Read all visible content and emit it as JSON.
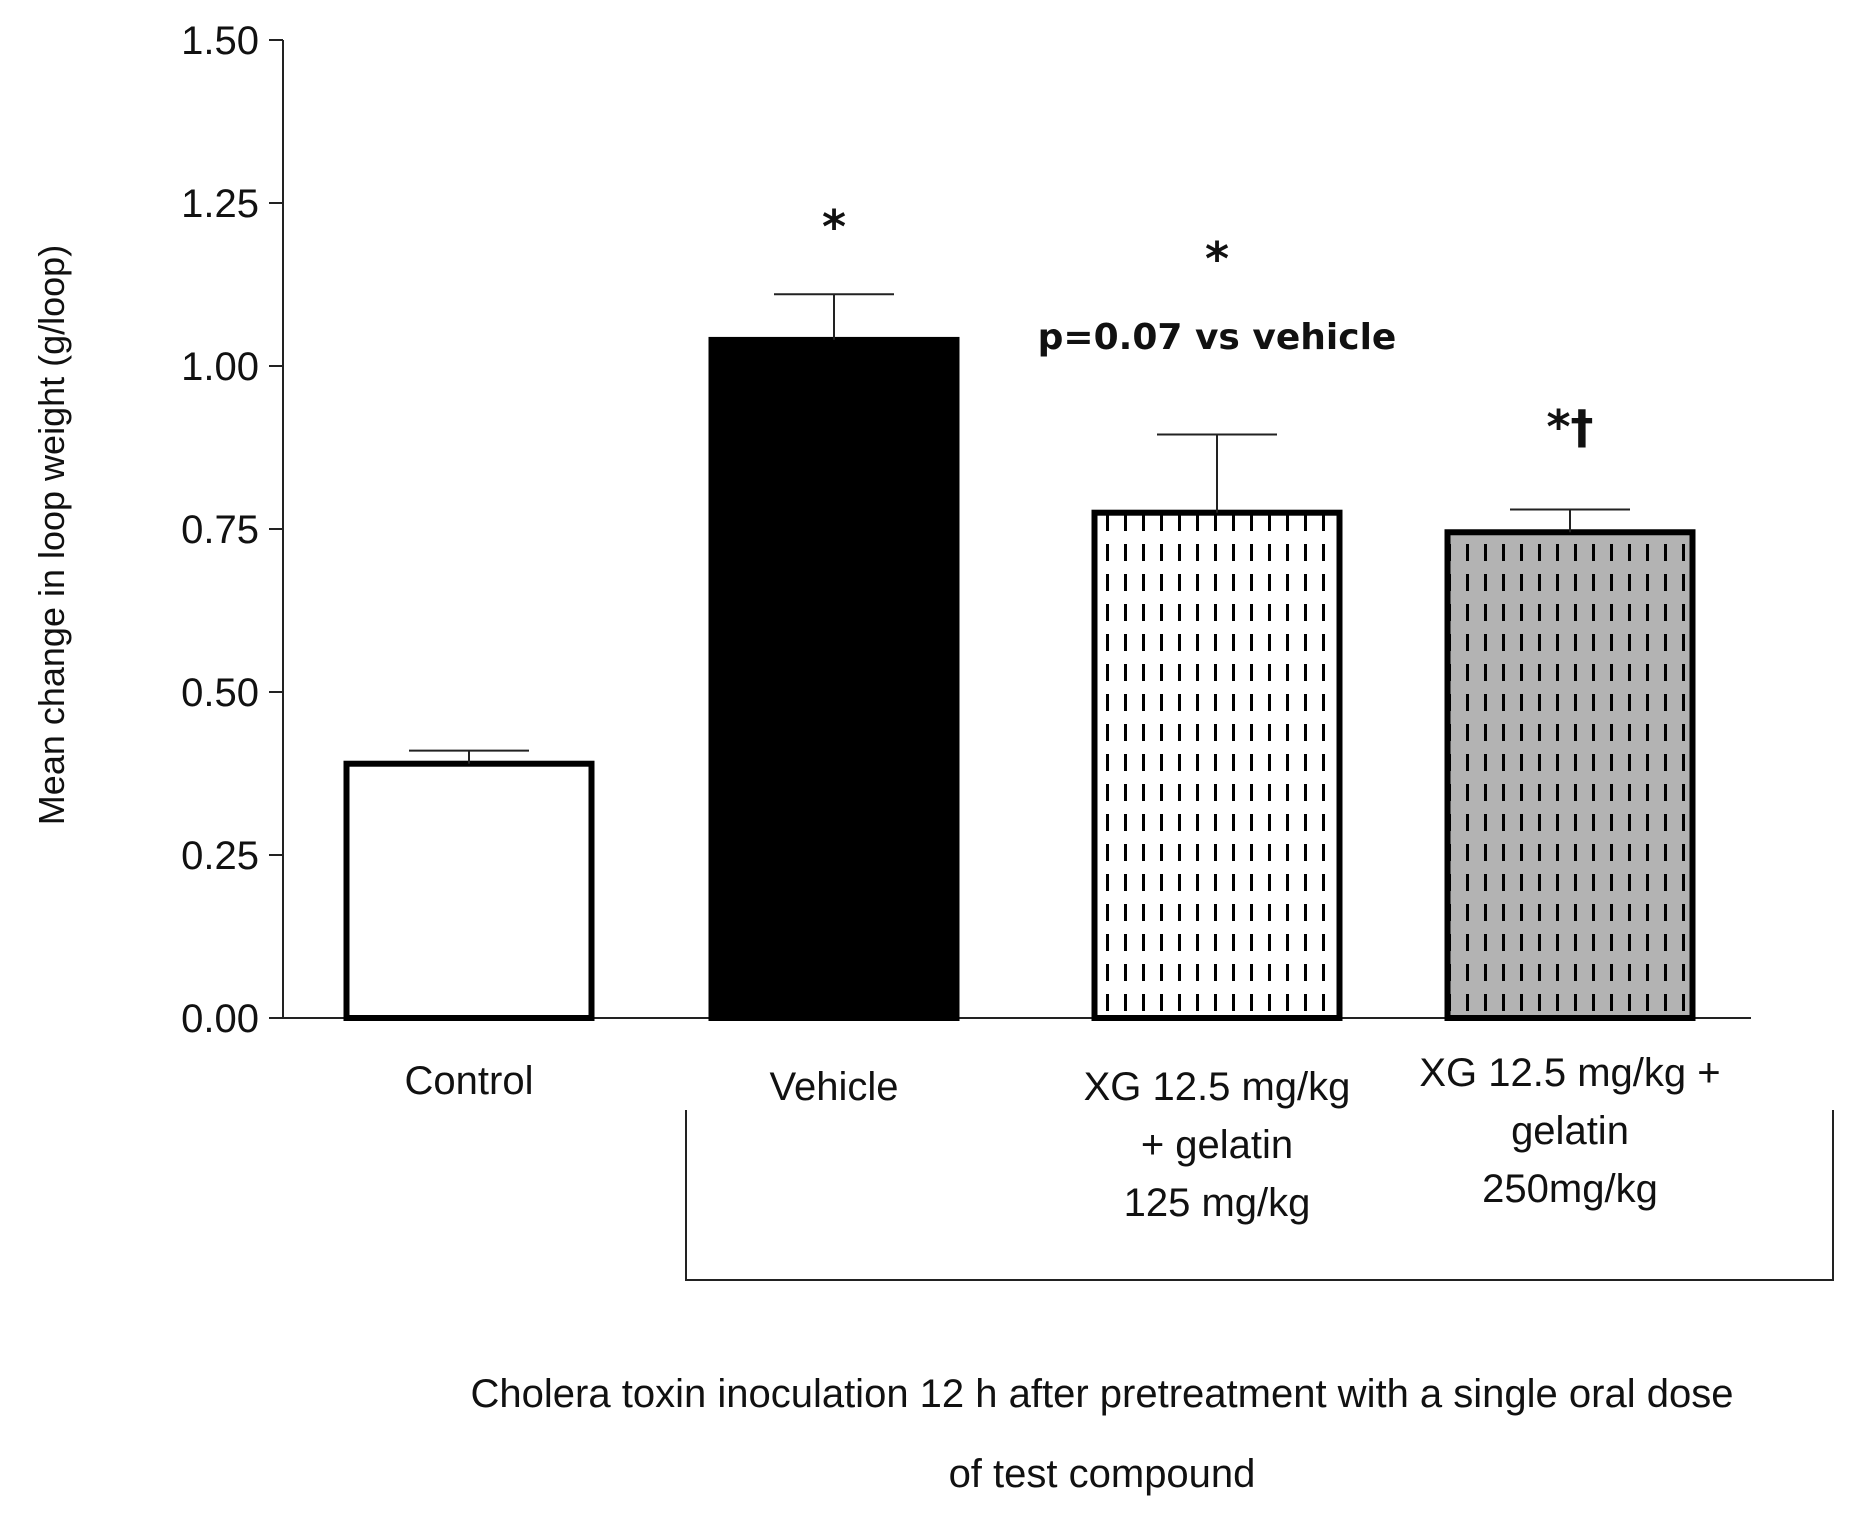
{
  "chart_data": {
    "type": "bar",
    "title": "",
    "xlabel": "",
    "ylabel": "Mean change in loop weight  (g/loop)",
    "ylim": [
      0,
      1.5
    ],
    "yticks": [
      "0.00",
      "0.25",
      "0.50",
      "0.75",
      "1.00",
      "1.25",
      "1.50"
    ],
    "ytick_values": [
      0,
      0.25,
      0.5,
      0.75,
      1.0,
      1.25,
      1.5
    ],
    "categories": [
      {
        "lines": [
          "Control"
        ]
      },
      {
        "lines": [
          "Vehicle"
        ]
      },
      {
        "lines": [
          "XG 12.5 mg/kg",
          "+ gelatin",
          "125 mg/kg"
        ]
      },
      {
        "lines": [
          "XG 12.5 mg/kg +",
          "gelatin",
          "250mg/kg"
        ]
      }
    ],
    "values": [
      0.39,
      1.04,
      0.775,
      0.745
    ],
    "errors": [
      0.02,
      0.07,
      0.12,
      0.035
    ],
    "fills": [
      "white",
      "black",
      "white-dashed",
      "gray-dashed"
    ],
    "fill_colors": {
      "white": "#ffffff",
      "black": "#000000",
      "gray": "#b3b3b3",
      "pattern": "#000000"
    },
    "annotations": [
      {
        "bar": 1,
        "text": "*"
      },
      {
        "bar": 2,
        "text": "*"
      },
      {
        "bar": 2,
        "text": "p=0.07 vs vehicle"
      },
      {
        "bar": 3,
        "text": "*†"
      }
    ],
    "group_bracket": {
      "covers": [
        1,
        2,
        3
      ],
      "caption_lines": [
        "Cholera toxin inoculation 12 h after pretreatment with a single oral dose",
        "of test compound"
      ]
    }
  }
}
